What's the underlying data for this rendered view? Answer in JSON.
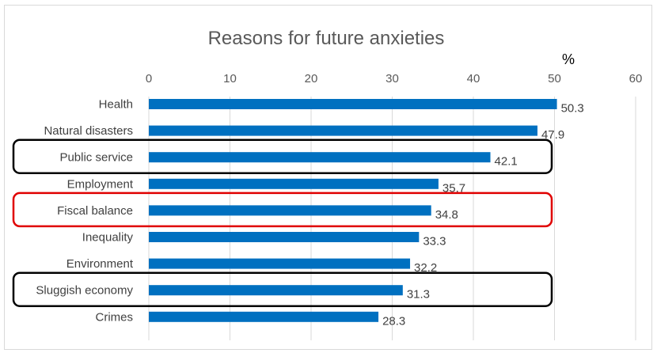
{
  "chart_data": {
    "type": "bar",
    "orientation": "horizontal",
    "title": "Reasons for future anxieties",
    "unit_label": "%",
    "xlim": [
      0,
      60
    ],
    "x_ticks": [
      "0",
      "10",
      "20",
      "30",
      "40",
      "50",
      "60"
    ],
    "x_tick_values": [
      0,
      10,
      20,
      30,
      40,
      50,
      60
    ],
    "categories": [
      "Health",
      "Natural disasters",
      "Public service",
      "Employment",
      "Fiscal balance",
      "Inequality",
      "Environment",
      "Sluggish economy",
      "Crimes"
    ],
    "values": [
      50.3,
      47.9,
      42.1,
      35.7,
      34.8,
      33.3,
      32.2,
      31.3,
      28.3
    ],
    "value_labels": [
      "50.3",
      "47.9",
      "42.1",
      "35.7",
      "34.8",
      "33.3",
      "32.2",
      "31.3",
      "28.3"
    ],
    "bar_color": "#0070c0",
    "grid": true,
    "x_axis_position": "top",
    "highlights": [
      {
        "category": "Public service",
        "color": "#000000"
      },
      {
        "category": "Fiscal balance",
        "color": "#e00000"
      },
      {
        "category": "Sluggish economy",
        "color": "#000000"
      }
    ]
  }
}
